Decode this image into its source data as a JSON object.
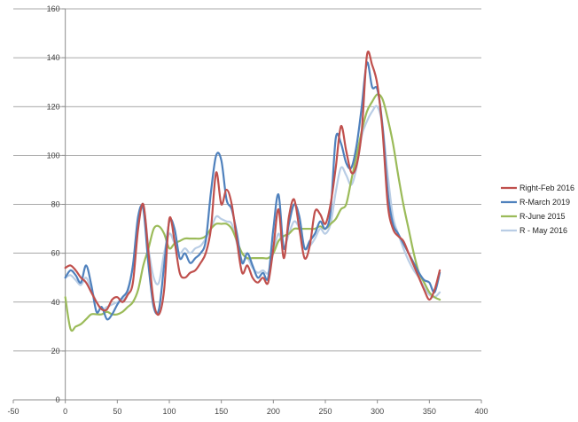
{
  "chart_data": {
    "type": "line",
    "title": "",
    "xlabel": "",
    "ylabel": "",
    "xlim": [
      -50,
      400
    ],
    "ylim": [
      0,
      160
    ],
    "x_ticks": [
      -50,
      0,
      50,
      100,
      150,
      200,
      250,
      300,
      350,
      400
    ],
    "y_ticks": [
      0,
      20,
      40,
      60,
      80,
      100,
      120,
      140,
      160
    ],
    "grid": "horizontal",
    "legend": "right",
    "series": [
      {
        "name": "Right-Feb 2016",
        "color": "#c0504d",
        "points": [
          [
            0,
            54
          ],
          [
            5,
            55
          ],
          [
            10,
            53
          ],
          [
            15,
            50
          ],
          [
            20,
            48
          ],
          [
            25,
            44
          ],
          [
            30,
            40
          ],
          [
            35,
            37
          ],
          [
            40,
            37
          ],
          [
            45,
            41
          ],
          [
            50,
            42
          ],
          [
            55,
            40
          ],
          [
            60,
            43
          ],
          [
            65,
            48
          ],
          [
            70,
            70
          ],
          [
            75,
            80
          ],
          [
            80,
            60
          ],
          [
            85,
            40
          ],
          [
            90,
            35
          ],
          [
            95,
            45
          ],
          [
            100,
            74
          ],
          [
            105,
            65
          ],
          [
            110,
            52
          ],
          [
            115,
            50
          ],
          [
            120,
            52
          ],
          [
            125,
            53
          ],
          [
            130,
            56
          ],
          [
            135,
            60
          ],
          [
            140,
            70
          ],
          [
            145,
            93
          ],
          [
            150,
            80
          ],
          [
            155,
            86
          ],
          [
            160,
            80
          ],
          [
            165,
            65
          ],
          [
            170,
            52
          ],
          [
            175,
            55
          ],
          [
            180,
            50
          ],
          [
            185,
            48
          ],
          [
            190,
            50
          ],
          [
            195,
            48
          ],
          [
            200,
            62
          ],
          [
            205,
            78
          ],
          [
            210,
            58
          ],
          [
            215,
            75
          ],
          [
            220,
            82
          ],
          [
            225,
            70
          ],
          [
            230,
            58
          ],
          [
            235,
            63
          ],
          [
            240,
            77
          ],
          [
            245,
            76
          ],
          [
            250,
            72
          ],
          [
            255,
            80
          ],
          [
            260,
            95
          ],
          [
            265,
            112
          ],
          [
            270,
            102
          ],
          [
            275,
            93
          ],
          [
            280,
            96
          ],
          [
            285,
            110
          ],
          [
            290,
            141
          ],
          [
            295,
            137
          ],
          [
            300,
            129
          ],
          [
            305,
            110
          ],
          [
            310,
            80
          ],
          [
            315,
            70
          ],
          [
            320,
            67
          ],
          [
            325,
            65
          ],
          [
            330,
            60
          ],
          [
            335,
            55
          ],
          [
            340,
            50
          ],
          [
            345,
            45
          ],
          [
            350,
            41
          ],
          [
            355,
            45
          ],
          [
            360,
            53
          ]
        ]
      },
      {
        "name": "R-March 2019",
        "color": "#4f81bd",
        "points": [
          [
            0,
            50
          ],
          [
            5,
            53
          ],
          [
            10,
            51
          ],
          [
            15,
            48
          ],
          [
            20,
            55
          ],
          [
            25,
            47
          ],
          [
            30,
            36
          ],
          [
            35,
            38
          ],
          [
            40,
            33
          ],
          [
            45,
            35
          ],
          [
            50,
            39
          ],
          [
            55,
            42
          ],
          [
            60,
            45
          ],
          [
            65,
            55
          ],
          [
            70,
            75
          ],
          [
            75,
            78
          ],
          [
            80,
            55
          ],
          [
            85,
            38
          ],
          [
            90,
            37
          ],
          [
            95,
            55
          ],
          [
            100,
            73
          ],
          [
            105,
            70
          ],
          [
            110,
            58
          ],
          [
            115,
            60
          ],
          [
            120,
            56
          ],
          [
            125,
            58
          ],
          [
            130,
            60
          ],
          [
            135,
            65
          ],
          [
            140,
            85
          ],
          [
            145,
            100
          ],
          [
            150,
            98
          ],
          [
            155,
            82
          ],
          [
            160,
            78
          ],
          [
            165,
            68
          ],
          [
            170,
            56
          ],
          [
            175,
            60
          ],
          [
            180,
            55
          ],
          [
            185,
            50
          ],
          [
            190,
            52
          ],
          [
            195,
            50
          ],
          [
            200,
            70
          ],
          [
            205,
            84
          ],
          [
            210,
            62
          ],
          [
            215,
            72
          ],
          [
            220,
            80
          ],
          [
            225,
            75
          ],
          [
            230,
            62
          ],
          [
            235,
            65
          ],
          [
            240,
            68
          ],
          [
            245,
            73
          ],
          [
            250,
            70
          ],
          [
            255,
            77
          ],
          [
            260,
            107
          ],
          [
            265,
            105
          ],
          [
            270,
            97
          ],
          [
            275,
            95
          ],
          [
            280,
            104
          ],
          [
            285,
            120
          ],
          [
            290,
            138
          ],
          [
            295,
            128
          ],
          [
            300,
            127
          ],
          [
            305,
            112
          ],
          [
            310,
            85
          ],
          [
            315,
            72
          ],
          [
            320,
            68
          ],
          [
            325,
            64
          ],
          [
            330,
            60
          ],
          [
            335,
            56
          ],
          [
            340,
            52
          ],
          [
            345,
            49
          ],
          [
            350,
            48
          ],
          [
            355,
            44
          ],
          [
            360,
            52
          ]
        ]
      },
      {
        "name": "R-June 2015",
        "color": "#9bbb59",
        "points": [
          [
            0,
            42
          ],
          [
            5,
            29
          ],
          [
            10,
            30
          ],
          [
            15,
            31
          ],
          [
            20,
            33
          ],
          [
            25,
            35
          ],
          [
            30,
            35
          ],
          [
            35,
            35
          ],
          [
            40,
            36
          ],
          [
            45,
            35
          ],
          [
            50,
            35
          ],
          [
            55,
            36
          ],
          [
            60,
            38
          ],
          [
            65,
            40
          ],
          [
            70,
            45
          ],
          [
            75,
            55
          ],
          [
            80,
            62
          ],
          [
            85,
            70
          ],
          [
            90,
            71
          ],
          [
            95,
            68
          ],
          [
            100,
            62
          ],
          [
            105,
            64
          ],
          [
            110,
            65
          ],
          [
            115,
            66
          ],
          [
            120,
            66
          ],
          [
            125,
            66
          ],
          [
            130,
            66
          ],
          [
            135,
            67
          ],
          [
            140,
            70
          ],
          [
            145,
            72
          ],
          [
            150,
            72
          ],
          [
            155,
            72
          ],
          [
            160,
            70
          ],
          [
            165,
            65
          ],
          [
            170,
            60
          ],
          [
            175,
            58
          ],
          [
            180,
            58
          ],
          [
            185,
            58
          ],
          [
            190,
            58
          ],
          [
            195,
            58
          ],
          [
            200,
            60
          ],
          [
            205,
            65
          ],
          [
            210,
            67
          ],
          [
            215,
            68
          ],
          [
            220,
            70
          ],
          [
            225,
            70
          ],
          [
            230,
            70
          ],
          [
            235,
            70
          ],
          [
            240,
            70
          ],
          [
            245,
            71
          ],
          [
            250,
            70
          ],
          [
            255,
            72
          ],
          [
            260,
            74
          ],
          [
            265,
            78
          ],
          [
            270,
            80
          ],
          [
            275,
            90
          ],
          [
            280,
            100
          ],
          [
            285,
            110
          ],
          [
            290,
            118
          ],
          [
            295,
            122
          ],
          [
            300,
            125
          ],
          [
            305,
            123
          ],
          [
            310,
            115
          ],
          [
            315,
            105
          ],
          [
            320,
            92
          ],
          [
            325,
            80
          ],
          [
            330,
            70
          ],
          [
            335,
            60
          ],
          [
            340,
            52
          ],
          [
            345,
            48
          ],
          [
            350,
            44
          ],
          [
            355,
            42
          ],
          [
            360,
            41
          ]
        ]
      },
      {
        "name": "R - May 2016",
        "color": "#b9cde5",
        "points": [
          [
            0,
            50
          ],
          [
            5,
            51
          ],
          [
            10,
            49
          ],
          [
            15,
            47
          ],
          [
            20,
            50
          ],
          [
            25,
            45
          ],
          [
            30,
            40
          ],
          [
            35,
            37
          ],
          [
            40,
            38
          ],
          [
            45,
            39
          ],
          [
            50,
            40
          ],
          [
            55,
            41
          ],
          [
            60,
            44
          ],
          [
            65,
            55
          ],
          [
            70,
            72
          ],
          [
            75,
            80
          ],
          [
            80,
            62
          ],
          [
            85,
            50
          ],
          [
            90,
            48
          ],
          [
            95,
            60
          ],
          [
            100,
            68
          ],
          [
            105,
            64
          ],
          [
            110,
            60
          ],
          [
            115,
            62
          ],
          [
            120,
            60
          ],
          [
            125,
            62
          ],
          [
            130,
            63
          ],
          [
            135,
            66
          ],
          [
            140,
            70
          ],
          [
            145,
            75
          ],
          [
            150,
            74
          ],
          [
            155,
            73
          ],
          [
            160,
            72
          ],
          [
            165,
            64
          ],
          [
            170,
            57
          ],
          [
            175,
            58
          ],
          [
            180,
            54
          ],
          [
            185,
            52
          ],
          [
            190,
            53
          ],
          [
            195,
            52
          ],
          [
            200,
            60
          ],
          [
            205,
            68
          ],
          [
            210,
            62
          ],
          [
            215,
            68
          ],
          [
            220,
            73
          ],
          [
            225,
            70
          ],
          [
            230,
            62
          ],
          [
            235,
            63
          ],
          [
            240,
            66
          ],
          [
            245,
            70
          ],
          [
            250,
            68
          ],
          [
            255,
            72
          ],
          [
            260,
            85
          ],
          [
            265,
            95
          ],
          [
            270,
            92
          ],
          [
            275,
            88
          ],
          [
            280,
            95
          ],
          [
            285,
            108
          ],
          [
            290,
            114
          ],
          [
            295,
            118
          ],
          [
            300,
            120
          ],
          [
            305,
            112
          ],
          [
            310,
            92
          ],
          [
            315,
            75
          ],
          [
            320,
            68
          ],
          [
            325,
            62
          ],
          [
            330,
            57
          ],
          [
            335,
            53
          ],
          [
            340,
            50
          ],
          [
            345,
            46
          ],
          [
            350,
            43
          ],
          [
            355,
            42
          ],
          [
            360,
            44
          ]
        ]
      }
    ]
  }
}
